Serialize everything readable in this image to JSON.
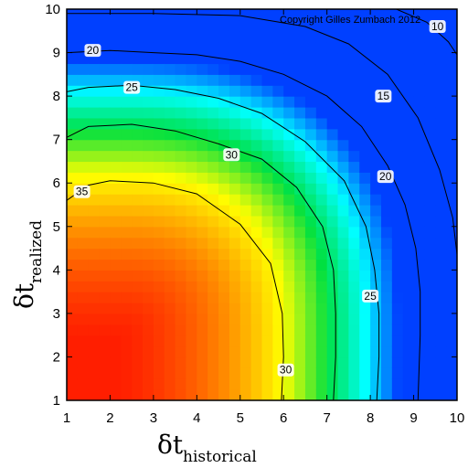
{
  "chart_data": {
    "type": "heatmap",
    "title": "",
    "xlabel": {
      "symbol": "δt",
      "subscript": "historical"
    },
    "ylabel": {
      "symbol": "δt",
      "subscript": "realized"
    },
    "xlim": [
      1,
      10
    ],
    "ylim": [
      1,
      10
    ],
    "x_ticks": [
      "1",
      "2",
      "3",
      "4",
      "5",
      "6",
      "7",
      "8",
      "9",
      "10"
    ],
    "y_ticks": [
      "1",
      "2",
      "3",
      "4",
      "5",
      "6",
      "7",
      "8",
      "9",
      "10"
    ],
    "color_scale": [
      "#ff1e00",
      "#ff8c00",
      "#ffff00",
      "#00e040",
      "#00ffff",
      "#0040ff"
    ],
    "value_range": [
      8,
      38
    ],
    "contour_levels": [
      10,
      15,
      20,
      25,
      30,
      35
    ],
    "contours": [
      {
        "level": 35,
        "label": "35",
        "points": [
          [
            1.0,
            5.6
          ],
          [
            1.5,
            5.95
          ],
          [
            2.0,
            6.05
          ],
          [
            3.0,
            6.0
          ],
          [
            4.0,
            5.75
          ],
          [
            5.0,
            5.05
          ],
          [
            5.7,
            4.15
          ],
          [
            5.97,
            3.0
          ],
          [
            6.0,
            2.0
          ],
          [
            5.95,
            1.0
          ]
        ],
        "label_at": [
          1.35,
          5.8
        ]
      },
      {
        "level": 30,
        "label": "30",
        "points": [
          [
            1.0,
            7.05
          ],
          [
            1.5,
            7.3
          ],
          [
            2.5,
            7.35
          ],
          [
            3.5,
            7.2
          ],
          [
            4.5,
            6.9
          ],
          [
            5.5,
            6.55
          ],
          [
            6.3,
            5.9
          ],
          [
            6.9,
            5.0
          ],
          [
            7.15,
            4.0
          ],
          [
            7.2,
            3.0
          ],
          [
            7.2,
            2.0
          ],
          [
            7.15,
            1.0
          ]
        ],
        "label_at": [
          4.8,
          6.65
        ],
        "label_at_2": [
          6.05,
          1.7
        ]
      },
      {
        "level": 25,
        "label": "25",
        "points": [
          [
            1.0,
            8.1
          ],
          [
            1.5,
            8.2
          ],
          [
            2.5,
            8.25
          ],
          [
            3.5,
            8.15
          ],
          [
            4.5,
            7.95
          ],
          [
            5.5,
            7.6
          ],
          [
            6.5,
            6.95
          ],
          [
            7.4,
            6.05
          ],
          [
            7.9,
            5.0
          ],
          [
            8.1,
            4.0
          ],
          [
            8.2,
            3.0
          ],
          [
            8.2,
            2.0
          ],
          [
            8.15,
            1.0
          ]
        ],
        "label_at": [
          2.5,
          8.2
        ],
        "label_at_2": [
          8.0,
          3.4
        ]
      },
      {
        "level": 20,
        "label": "20",
        "points": [
          [
            1.0,
            9.0
          ],
          [
            2.0,
            9.05
          ],
          [
            3.0,
            9.0
          ],
          [
            4.0,
            8.95
          ],
          [
            5.0,
            8.8
          ],
          [
            6.0,
            8.5
          ],
          [
            7.0,
            8.0
          ],
          [
            7.8,
            7.3
          ],
          [
            8.4,
            6.4
          ],
          [
            8.8,
            5.5
          ],
          [
            9.05,
            4.5
          ],
          [
            9.15,
            3.5
          ],
          [
            9.15,
            2.5
          ],
          [
            9.1,
            1.0
          ]
        ],
        "label_at": [
          1.6,
          9.05
        ],
        "label_at_2": [
          8.35,
          6.15
        ]
      },
      {
        "level": 15,
        "label": "15",
        "points": [
          [
            1.0,
            9.9
          ],
          [
            3.0,
            9.9
          ],
          [
            5.0,
            9.85
          ],
          [
            6.5,
            9.6
          ],
          [
            7.5,
            9.2
          ],
          [
            8.4,
            8.5
          ],
          [
            9.1,
            7.5
          ],
          [
            9.6,
            6.3
          ],
          [
            9.9,
            5.2
          ],
          [
            10.0,
            4.35
          ]
        ],
        "label_at": [
          8.3,
          8.0
        ]
      },
      {
        "level": 10,
        "label": "10",
        "points": [
          [
            8.6,
            10.0
          ],
          [
            9.3,
            9.7
          ],
          [
            9.8,
            9.25
          ],
          [
            10.0,
            8.95
          ]
        ],
        "label_at": [
          9.55,
          9.6
        ]
      }
    ]
  },
  "annotation": {
    "copyright": "Copyright Gilles Zumbach 2012"
  }
}
